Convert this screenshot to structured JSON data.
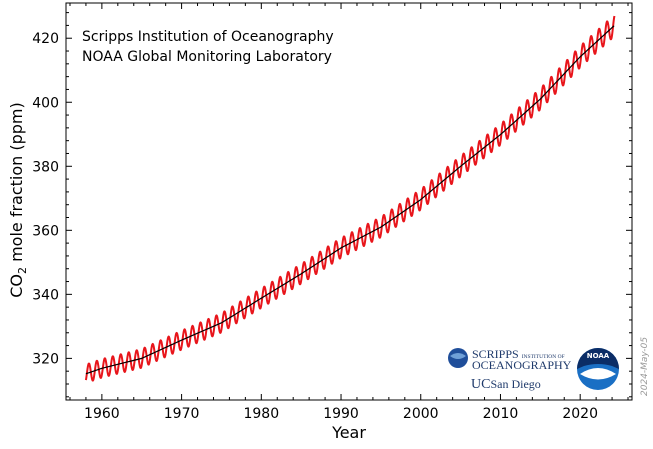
{
  "chart_data": {
    "type": "line",
    "xlabel": "Year",
    "ylabel_main": "CO",
    "ylabel_sub": "2",
    "ylabel_rest": " mole fraction (ppm)",
    "xlim": [
      1955.5,
      2026.5
    ],
    "ylim": [
      307,
      431
    ],
    "x_ticks": [
      1960,
      1970,
      1980,
      1990,
      2000,
      2010,
      2020
    ],
    "y_ticks": [
      320,
      340,
      360,
      380,
      400,
      420
    ],
    "annotations": [
      "Scripps Institution of Oceanography",
      "NOAA Global Monitoring Laboratory"
    ],
    "series": [
      {
        "color": "#e8151b",
        "kind": "monthly",
        "seasonal_amplitude_ppm": 3.2,
        "x": [
          1958,
          1960,
          1965,
          1970,
          1975,
          1980,
          1985,
          1990,
          1995,
          2000,
          2005,
          2010,
          2015,
          2020,
          2024.3
        ],
        "y": [
          315.2,
          316.9,
          320.0,
          325.7,
          331.1,
          338.8,
          346.4,
          354.5,
          361.0,
          369.6,
          380.0,
          389.9,
          401.0,
          414.2,
          424.0
        ]
      },
      {
        "color": "#000000",
        "kind": "trend",
        "x": [
          1958,
          1960,
          1965,
          1970,
          1975,
          1980,
          1985,
          1990,
          1995,
          2000,
          2005,
          2010,
          2015,
          2020,
          2024.3
        ],
        "y": [
          315.2,
          316.9,
          320.0,
          325.7,
          331.1,
          338.8,
          346.4,
          354.5,
          361.0,
          369.6,
          380.0,
          389.9,
          401.0,
          414.2,
          424.0
        ]
      }
    ]
  },
  "logos": {
    "scripps_line1": "SCRIPPS",
    "scripps_line1_small": "INSTITUTION OF",
    "scripps_line2": "OCEANOGRAPHY",
    "ucsd_uc": "UC",
    "ucsd_rest": "San Diego",
    "noaa": "NOAA"
  },
  "datestamp": "2024-May-05",
  "colors": {
    "monthly": "#e8151b",
    "trend": "#000000",
    "scripps_accent": "#1f4e9a",
    "noaa_blue": "#1a6fc4"
  }
}
